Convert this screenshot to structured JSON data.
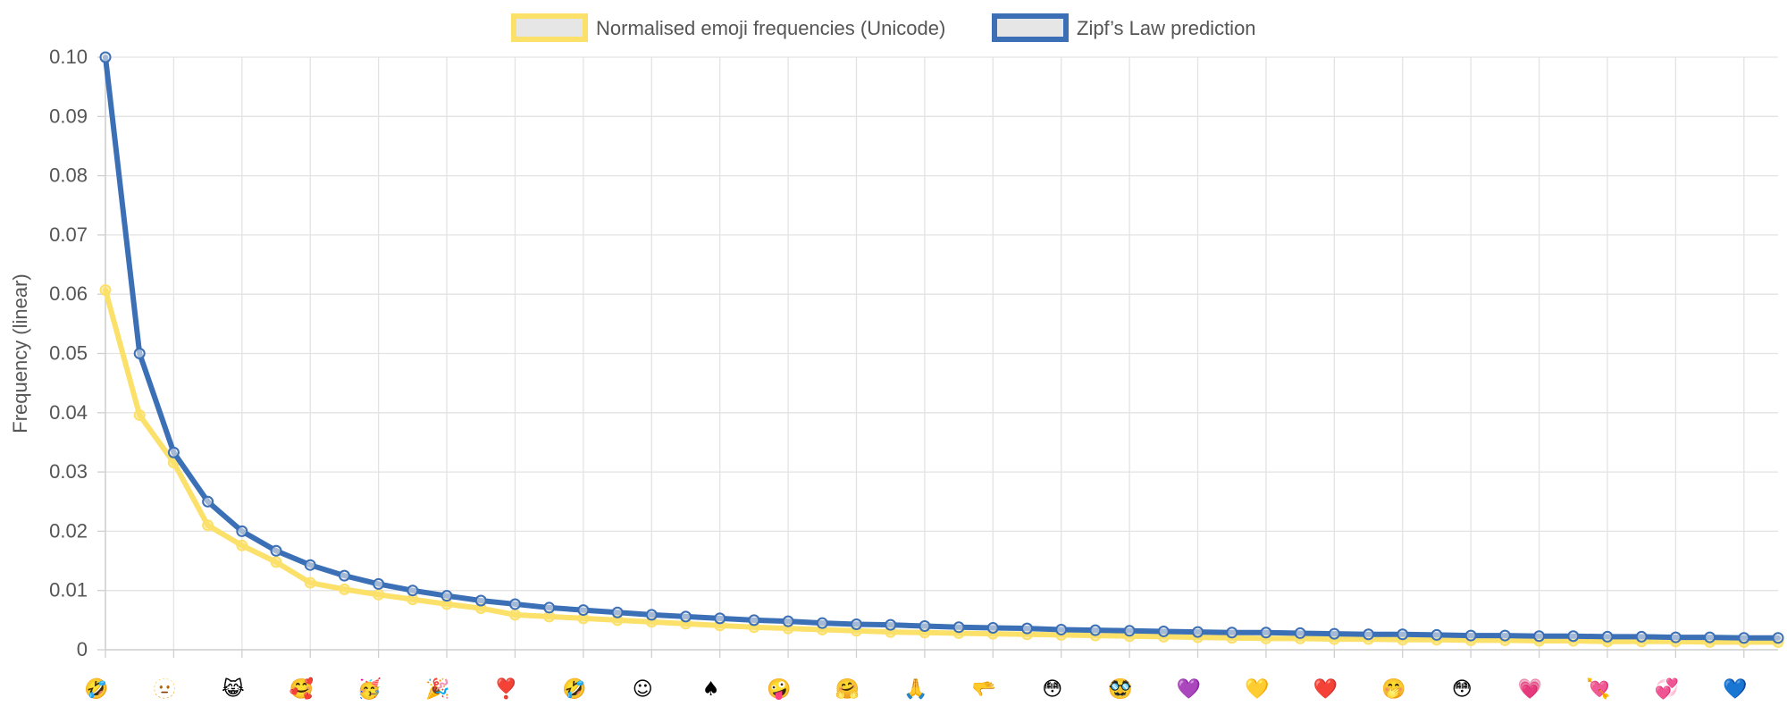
{
  "chart_data": {
    "type": "line",
    "ylabel": "Frequency (linear)",
    "ylim": [
      0,
      0.1
    ],
    "yticks": [
      "0",
      "0.01",
      "0.02",
      "0.03",
      "0.04",
      "0.05",
      "0.06",
      "0.07",
      "0.08",
      "0.09",
      "0.10"
    ],
    "grid": true,
    "legend_position": "top-center",
    "x_tick_emojis": [
      "🤣",
      "🫥",
      "😹",
      "🥰",
      "🥳",
      "🎉",
      "❣️",
      "🤣",
      "☺",
      "♠",
      "🤪",
      "🤗",
      "🙏",
      "🫳",
      "😳",
      "🥸",
      "💜",
      "💛",
      "❤️",
      "🤭",
      "😳",
      "💗",
      "💘",
      "💞",
      "💙"
    ],
    "series": [
      {
        "name": "Normalised emoji frequencies (Unicode)",
        "color": "#fbe06a",
        "values": [
          0.0607,
          0.0396,
          0.0316,
          0.021,
          0.0176,
          0.0148,
          0.0113,
          0.0102,
          0.0093,
          0.0085,
          0.0077,
          0.007,
          0.0059,
          0.0056,
          0.0053,
          0.005,
          0.0047,
          0.0044,
          0.0041,
          0.0038,
          0.0036,
          0.0034,
          0.0032,
          0.003,
          0.0029,
          0.0028,
          0.0027,
          0.0026,
          0.0025,
          0.0024,
          0.0023,
          0.0022,
          0.0021,
          0.002,
          0.0019,
          0.0019,
          0.0018,
          0.0018,
          0.0017,
          0.0017,
          0.0016,
          0.0016,
          0.0015,
          0.0015,
          0.0014,
          0.0014,
          0.0014,
          0.0013,
          0.0013,
          0.0013
        ]
      },
      {
        "name": "Zipf’s Law prediction",
        "color": "#3b6fb6",
        "values": [
          0.1,
          0.05,
          0.0333,
          0.025,
          0.02,
          0.0167,
          0.0143,
          0.0125,
          0.0111,
          0.01,
          0.0091,
          0.0083,
          0.0077,
          0.0071,
          0.0067,
          0.0063,
          0.0059,
          0.0056,
          0.0053,
          0.005,
          0.0048,
          0.0045,
          0.0043,
          0.0042,
          0.004,
          0.0038,
          0.0037,
          0.0036,
          0.0034,
          0.0033,
          0.0032,
          0.0031,
          0.003,
          0.0029,
          0.0029,
          0.0028,
          0.0027,
          0.0026,
          0.0026,
          0.0025,
          0.0024,
          0.0024,
          0.0023,
          0.0023,
          0.0022,
          0.0022,
          0.0021,
          0.0021,
          0.002,
          0.002
        ]
      }
    ]
  }
}
